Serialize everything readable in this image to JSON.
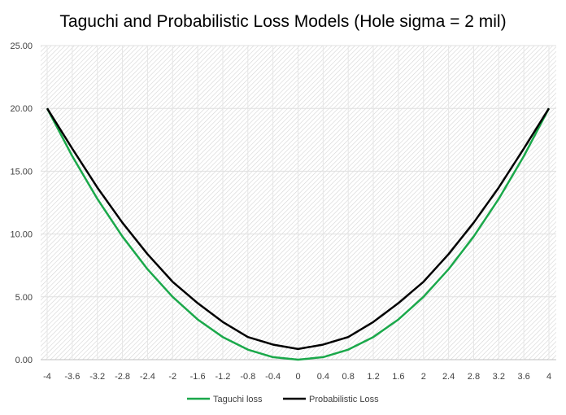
{
  "chart_data": {
    "type": "line",
    "title": "Taguchi and Probabilistic Loss Models (Hole sigma = 2 mil)",
    "xlabel": "",
    "ylabel": "",
    "categories": [
      "-4",
      "-3.6",
      "-3.2",
      "-2.8",
      "-2.4",
      "-2",
      "-1.6",
      "-1.2",
      "-0.8",
      "-0.4",
      "0",
      "0.4",
      "0.8",
      "1.2",
      "1.6",
      "2",
      "2.4",
      "2.8",
      "3.2",
      "3.6",
      "4"
    ],
    "ylim": [
      0,
      25
    ],
    "yticks": [
      "0.00",
      "5.00",
      "10.00",
      "15.00",
      "20.00",
      "25.00"
    ],
    "grid": true,
    "legend_position": "bottom",
    "series": [
      {
        "name": "Taguchi loss",
        "color": "#1aa84a",
        "values": [
          20,
          16.2,
          12.8,
          9.8,
          7.2,
          5,
          3.2,
          1.8,
          0.8,
          0.2,
          0,
          0.2,
          0.8,
          1.8,
          3.2,
          5,
          7.2,
          9.8,
          12.8,
          16.2,
          20
        ]
      },
      {
        "name": "Probabilistic Loss",
        "color": "#000000",
        "values": [
          20,
          16.8,
          13.7,
          10.9,
          8.4,
          6.2,
          4.5,
          3.0,
          1.8,
          1.2,
          0.85,
          1.2,
          1.8,
          3.0,
          4.5,
          6.2,
          8.4,
          10.9,
          13.7,
          16.8,
          20
        ]
      }
    ]
  }
}
